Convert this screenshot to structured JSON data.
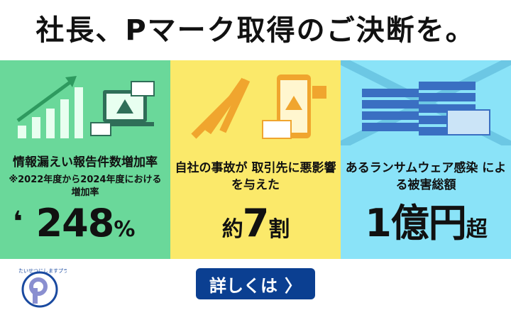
{
  "headline": "社長、Pマーク取得のご決断を。",
  "panels": [
    {
      "heading": "情報漏えい報告件数増加率",
      "note": "※2022年度から2024年度における増加率",
      "value": "248",
      "unit": "%",
      "color": "#6ad89a"
    },
    {
      "heading": "自社の事故が 取引先に悪影響を与えた",
      "prefix": "約",
      "value": "7",
      "unit": "割",
      "color": "#fbe96a"
    },
    {
      "heading": "あるランサムウェア感染 による被害総額",
      "value": "1億円",
      "unit": "超",
      "color": "#8ae3f8"
    }
  ],
  "cta": {
    "label": "詳しくは",
    "icon": "chevron-right-icon",
    "color": "#0b3f91"
  },
  "logo": {
    "text": "たいせつにしますプライバシー",
    "icon": "privacy-mark-logo"
  }
}
